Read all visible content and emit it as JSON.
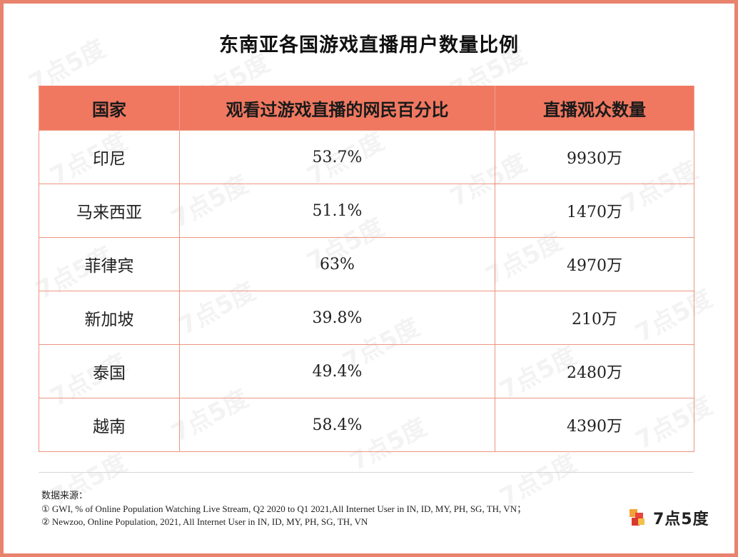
{
  "title": "东南亚各国游戏直播用户数量比例",
  "table": {
    "headers": [
      "国家",
      "观看过游戏直播的网民百分比",
      "直播观众数量"
    ],
    "rows": [
      {
        "country": "印尼",
        "percent": "53.7%",
        "viewers": "9930万"
      },
      {
        "country": "马来西亚",
        "percent": "51.1%",
        "viewers": "1470万"
      },
      {
        "country": "菲律宾",
        "percent": "63%",
        "viewers": "4970万"
      },
      {
        "country": "新加坡",
        "percent": "39.8%",
        "viewers": "210万"
      },
      {
        "country": "泰国",
        "percent": "49.4%",
        "viewers": "2480万"
      },
      {
        "country": "越南",
        "percent": "58.4%",
        "viewers": "4390万"
      }
    ]
  },
  "source": {
    "heading": "数据来源：",
    "lines": [
      "① GWI, % of Online Population Watching Live Stream, Q2 2020 to Q1 2021,All Internet User in IN, ID, MY, PH, SG, TH, VN；",
      "② Newzoo, Online Population, 2021, All Internet User in IN, ID, MY, PH, SG, TH, VN"
    ]
  },
  "logo": {
    "text": "7点5度",
    "icon": "7d5-logo-icon"
  },
  "watermark": "7点5度",
  "colors": {
    "header_bg": "#f07860",
    "border": "#ef9580",
    "frame": "#e8836e"
  }
}
